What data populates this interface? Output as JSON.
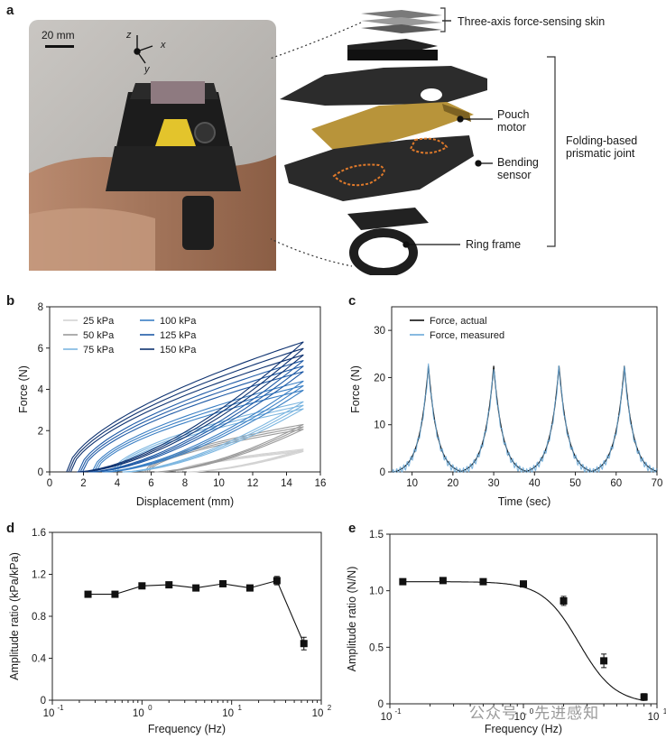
{
  "panels": {
    "a": "a",
    "b": "b",
    "c": "c",
    "d": "d",
    "e": "e"
  },
  "panel_a": {
    "scale_bar": "20 mm",
    "axis_z": "z",
    "axis_x": "x",
    "axis_y": "y",
    "labels": {
      "skin": "Three-axis force-sensing skin",
      "pouch_motor_1": "Pouch",
      "pouch_motor_2": "motor",
      "bending_1": "Bending",
      "bending_2": "sensor",
      "ring_frame": "Ring frame",
      "joint_1": "Folding-based",
      "joint_2": "prismatic joint"
    }
  },
  "watermark": "公众号 · 先进感知",
  "chart_data": [
    {
      "id": "b",
      "type": "line",
      "xlabel": "Displacement (mm)",
      "ylabel": "Force (N)",
      "xlim": [
        0,
        16
      ],
      "ylim": [
        0,
        8
      ],
      "xticks": [
        "0",
        "2",
        "4",
        "6",
        "8",
        "10",
        "12",
        "14",
        "16"
      ],
      "yticks": [
        "0",
        "2",
        "4",
        "6",
        "8"
      ],
      "legend_position": "top-left",
      "series": [
        {
          "name": "25 kPa",
          "color": "#d3d3d3",
          "x0": 7.5,
          "xmax": 15,
          "fmax": 1.1
        },
        {
          "name": "50 kPa",
          "color": "#9a9a9a",
          "x0": 5.6,
          "xmax": 15,
          "fmax": 2.3
        },
        {
          "name": "75 kPa",
          "color": "#7cb6e0",
          "x0": 3.7,
          "xmax": 15,
          "fmax": 3.4
        },
        {
          "name": "100 kPa",
          "color": "#3a7fc4",
          "x0": 2.5,
          "xmax": 15,
          "fmax": 4.4
        },
        {
          "name": "125 kPa",
          "color": "#1f5aa6",
          "x0": 1.7,
          "xmax": 15,
          "fmax": 5.4
        },
        {
          "name": "150 kPa",
          "color": "#0e3270",
          "x0": 1.0,
          "xmax": 15,
          "fmax": 6.3
        }
      ]
    },
    {
      "id": "c",
      "type": "line",
      "xlabel": "Time (sec)",
      "ylabel": "Force (N)",
      "xlim": [
        5,
        70
      ],
      "ylim": [
        0,
        35
      ],
      "xticks": [
        "10",
        "20",
        "30",
        "40",
        "50",
        "60",
        "70"
      ],
      "yticks": [
        "0",
        "10",
        "20",
        "30"
      ],
      "legend_position": "top-left",
      "peaks_x": [
        14,
        30,
        46,
        62
      ],
      "peak_value": 23,
      "series": [
        {
          "name": "Force, actual",
          "color": "#111111"
        },
        {
          "name": "Force, measured",
          "color": "#6aa9d8"
        }
      ]
    },
    {
      "id": "d",
      "type": "scatter",
      "xlabel": "Frequency (Hz)",
      "ylabel": "Amplitude ratio (kPa/kPa)",
      "xscale": "log",
      "xlim_exp": [
        -1,
        2
      ],
      "ylim": [
        0,
        1.6
      ],
      "xtick_labels": [
        "10",
        "10",
        "10",
        "10"
      ],
      "xtick_exps": [
        "-1",
        "0",
        "1",
        "2"
      ],
      "yticks": [
        "0",
        "0.4",
        "0.8",
        "1.2",
        "1.6"
      ],
      "x": [
        0.25,
        0.5,
        1,
        2,
        4,
        8,
        16,
        32,
        64
      ],
      "y": [
        1.01,
        1.01,
        1.09,
        1.1,
        1.07,
        1.11,
        1.07,
        1.14,
        0.54
      ],
      "err": [
        0,
        0,
        0,
        0,
        0,
        0,
        0,
        0.04,
        0.06
      ]
    },
    {
      "id": "e",
      "type": "scatter",
      "xlabel": "Frequency (Hz)",
      "ylabel": "Amplitude ratio (N/N)",
      "xscale": "log",
      "xlim_exp": [
        -1,
        1
      ],
      "ylim": [
        0,
        1.5
      ],
      "xtick_labels": [
        "10",
        "10",
        "10"
      ],
      "xtick_exps": [
        "-1",
        "0",
        "1"
      ],
      "yticks": [
        "0",
        "0.5",
        "1.0",
        "1.5"
      ],
      "x": [
        0.125,
        0.25,
        0.5,
        1,
        2,
        4,
        8
      ],
      "y": [
        1.08,
        1.09,
        1.08,
        1.06,
        0.91,
        0.38,
        0.06
      ],
      "err": [
        0,
        0,
        0,
        0,
        0.04,
        0.06,
        0.03
      ]
    }
  ]
}
